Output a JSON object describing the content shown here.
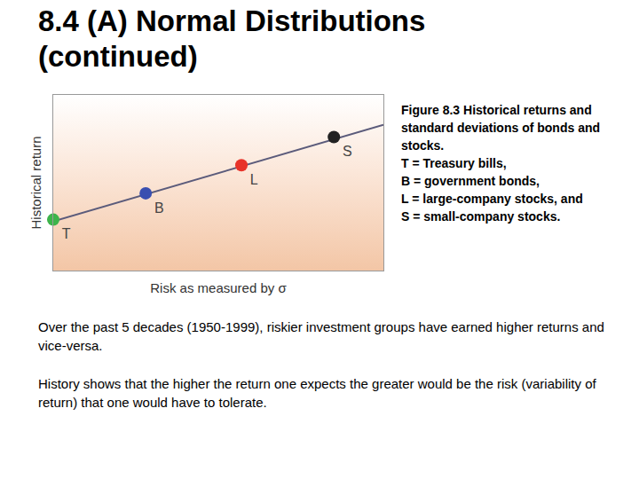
{
  "heading": [
    "8.4 (A) Normal Distributions",
    "(continued)"
  ],
  "caption": [
    "Figure 8.3 Historical returns and standard deviations of bonds and stocks.",
    "T = Treasury bills,",
    "B = government bonds,",
    "L = large-company stocks, and",
    "S = small-company stocks."
  ],
  "paragraphs": [
    "Over the past 5 decades (1950-1999), riskier investment groups have earned higher returns and vice-versa.",
    "History shows that the higher the return one expects the greater would be the risk (variability of return) that one would have to tolerate."
  ],
  "chart_data": {
    "type": "scatter",
    "x_label": "Risk as measured by σ",
    "y_label": "Historical return",
    "xlim": [
      0,
      10
    ],
    "ylim": [
      0,
      10
    ],
    "tick_labels": false,
    "grid": false,
    "series": [
      {
        "type": "line",
        "color": "#5b5b7b",
        "x": [
          0,
          10
        ],
        "values": [
          2.8,
          8.3
        ]
      },
      {
        "type": "scatter",
        "marker": "circle",
        "labels": [
          "T",
          "B",
          "L",
          "S"
        ],
        "x": [
          0,
          2.8,
          5.7,
          8.5
        ],
        "values": [
          2.9,
          4.4,
          6.0,
          7.6
        ],
        "colors": [
          "#3cb44b",
          "#3a4fb0",
          "#e8332a",
          "#222222"
        ]
      }
    ]
  }
}
